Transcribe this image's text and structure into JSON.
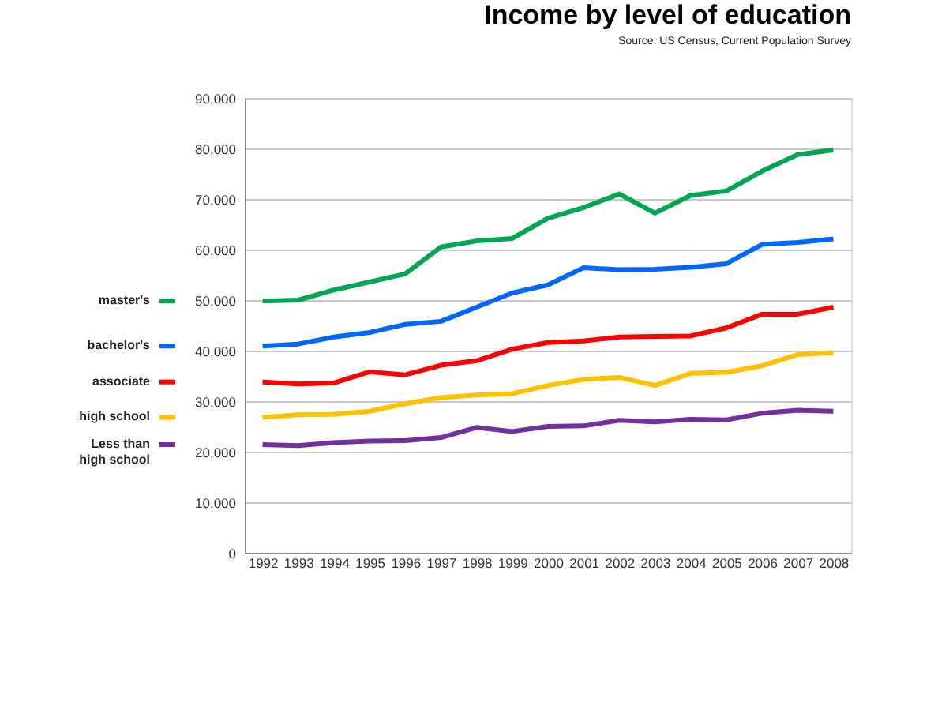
{
  "chart_data": {
    "type": "line",
    "title": "Income by level of education",
    "subtitle": "Source: US Census, Current Population Survey",
    "categories": [
      "1992",
      "1993",
      "1994",
      "1995",
      "1996",
      "1997",
      "1998",
      "1999",
      "2000",
      "2001",
      "2002",
      "2003",
      "2004",
      "2005",
      "2006",
      "2007",
      "2008"
    ],
    "series": [
      {
        "name": "master's",
        "color": "#00a651",
        "values": [
          49800,
          50000,
          52000,
          53600,
          55200,
          60500,
          61700,
          62200,
          66200,
          68300,
          71000,
          67200,
          70700,
          71600,
          75500,
          78800,
          79700
        ]
      },
      {
        "name": "bachelor's",
        "color": "#0066ff",
        "values": [
          40900,
          41300,
          42700,
          43600,
          45200,
          45800,
          48600,
          51400,
          53000,
          56400,
          56000,
          56100,
          56500,
          57200,
          61000,
          61400,
          62100
        ]
      },
      {
        "name": "associate",
        "color": "#ff0000",
        "values": [
          33800,
          33400,
          33600,
          35800,
          35200,
          37100,
          38000,
          40300,
          41600,
          41900,
          42700,
          42800,
          42900,
          44500,
          47200,
          47200,
          48600
        ]
      },
      {
        "name": "high school",
        "color": "#ffc000",
        "values": [
          26800,
          27300,
          27400,
          28000,
          29500,
          30700,
          31200,
          31500,
          33100,
          34300,
          34700,
          33100,
          35500,
          35700,
          37000,
          39200,
          39600
        ]
      },
      {
        "name": "Less than\nhigh school",
        "color": "#7030a0",
        "values": [
          21400,
          21200,
          21800,
          22100,
          22200,
          22800,
          24800,
          24000,
          25000,
          25100,
          26200,
          25900,
          26400,
          26300,
          27600,
          28200,
          28000
        ]
      }
    ],
    "ylim": [
      0,
      90000
    ],
    "yticks": [
      {
        "value": 0,
        "label": "0"
      },
      {
        "value": 10000,
        "label": "10,000"
      },
      {
        "value": 20000,
        "label": "20,000"
      },
      {
        "value": 30000,
        "label": "30,000"
      },
      {
        "value": 40000,
        "label": "40,000"
      },
      {
        "value": 50000,
        "label": "50,000"
      },
      {
        "value": 60000,
        "label": "60,000"
      },
      {
        "value": 70000,
        "label": "70,000"
      },
      {
        "value": 80000,
        "label": "80,000"
      },
      {
        "value": 90000,
        "label": "90,000"
      }
    ],
    "grid": "y",
    "legend": "left",
    "marker": "none",
    "line_style": "solid"
  }
}
